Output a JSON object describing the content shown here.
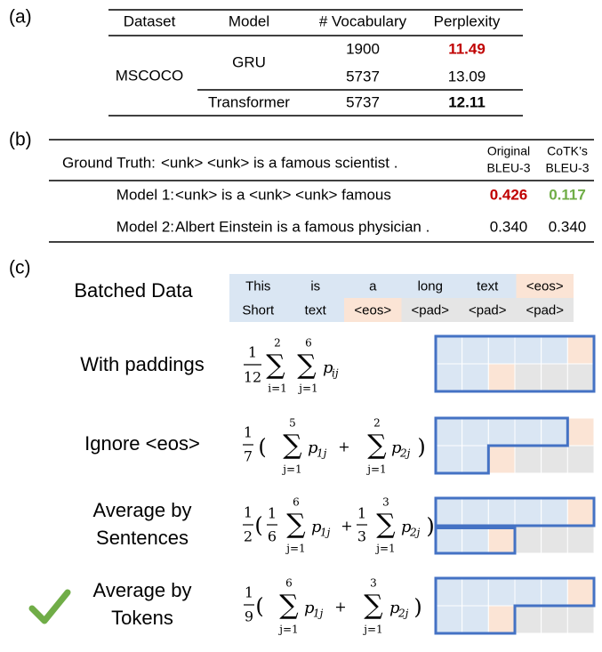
{
  "panel_a": {
    "label": "(a)",
    "header": [
      "Dataset",
      "Model",
      "# Vocabulary",
      "Perplexity"
    ],
    "dataset": "MSCOCO",
    "models": [
      {
        "name": "GRU",
        "rows": [
          [
            "1900",
            "11.49"
          ],
          [
            "5737",
            "13.09"
          ]
        ]
      },
      {
        "name": "Transformer",
        "rows": [
          [
            "5737",
            "12.11"
          ]
        ]
      }
    ]
  },
  "panel_b": {
    "label": "(b)",
    "ground_truth": {
      "label": "Ground Truth:",
      "text": "<unk> <unk> is a famous scientist ."
    },
    "columns": [
      [
        "Original",
        "BLEU-3"
      ],
      [
        "CoTK’s",
        "BLEU-3"
      ]
    ],
    "rows": [
      {
        "label": "Model 1:",
        "text": "<unk> is a <unk> <unk> famous",
        "scores": [
          "0.426",
          "0.117"
        ]
      },
      {
        "label": "Model 2:",
        "text": "Albert Einstein is a famous physician .",
        "scores": [
          "0.340",
          "0.340"
        ]
      }
    ]
  },
  "panel_c": {
    "label": "(c)",
    "batched": {
      "title": "Batched Data",
      "rows": [
        [
          "This",
          "is",
          "a",
          "long",
          "text",
          "<eos>"
        ],
        [
          "Short",
          "text",
          "<eos>",
          "<pad>",
          "<pad>",
          "<pad>"
        ]
      ]
    },
    "rows": [
      {
        "label": [
          "With paddings"
        ],
        "formula": [
          "1",
          "12",
          "∑",
          "2",
          "i=1",
          "∑",
          "6",
          "j=1",
          "p",
          "ij"
        ]
      },
      {
        "label": [
          "Ignore <eos>"
        ],
        "formula": [
          "1",
          "7",
          "(",
          "∑",
          "5",
          "j=1",
          "p",
          "1j",
          "+",
          "∑",
          "2",
          "j=1",
          "p",
          "2j",
          ")"
        ]
      },
      {
        "label": [
          "Average by",
          "Sentences"
        ],
        "formula": [
          "1",
          "2",
          "(",
          "1",
          "6",
          "∑",
          "6",
          "j=1",
          "p",
          "1j",
          "+",
          "1",
          "3",
          "∑",
          "3",
          "j=1",
          "p",
          "2j",
          ")"
        ]
      },
      {
        "label": [
          "Average by",
          "Tokens"
        ],
        "formula": [
          "1",
          "9",
          "(",
          "∑",
          "6",
          "j=1",
          "p",
          "1j",
          "+",
          "∑",
          "3",
          "j=1",
          "p",
          "2j",
          ")"
        ]
      }
    ]
  }
}
